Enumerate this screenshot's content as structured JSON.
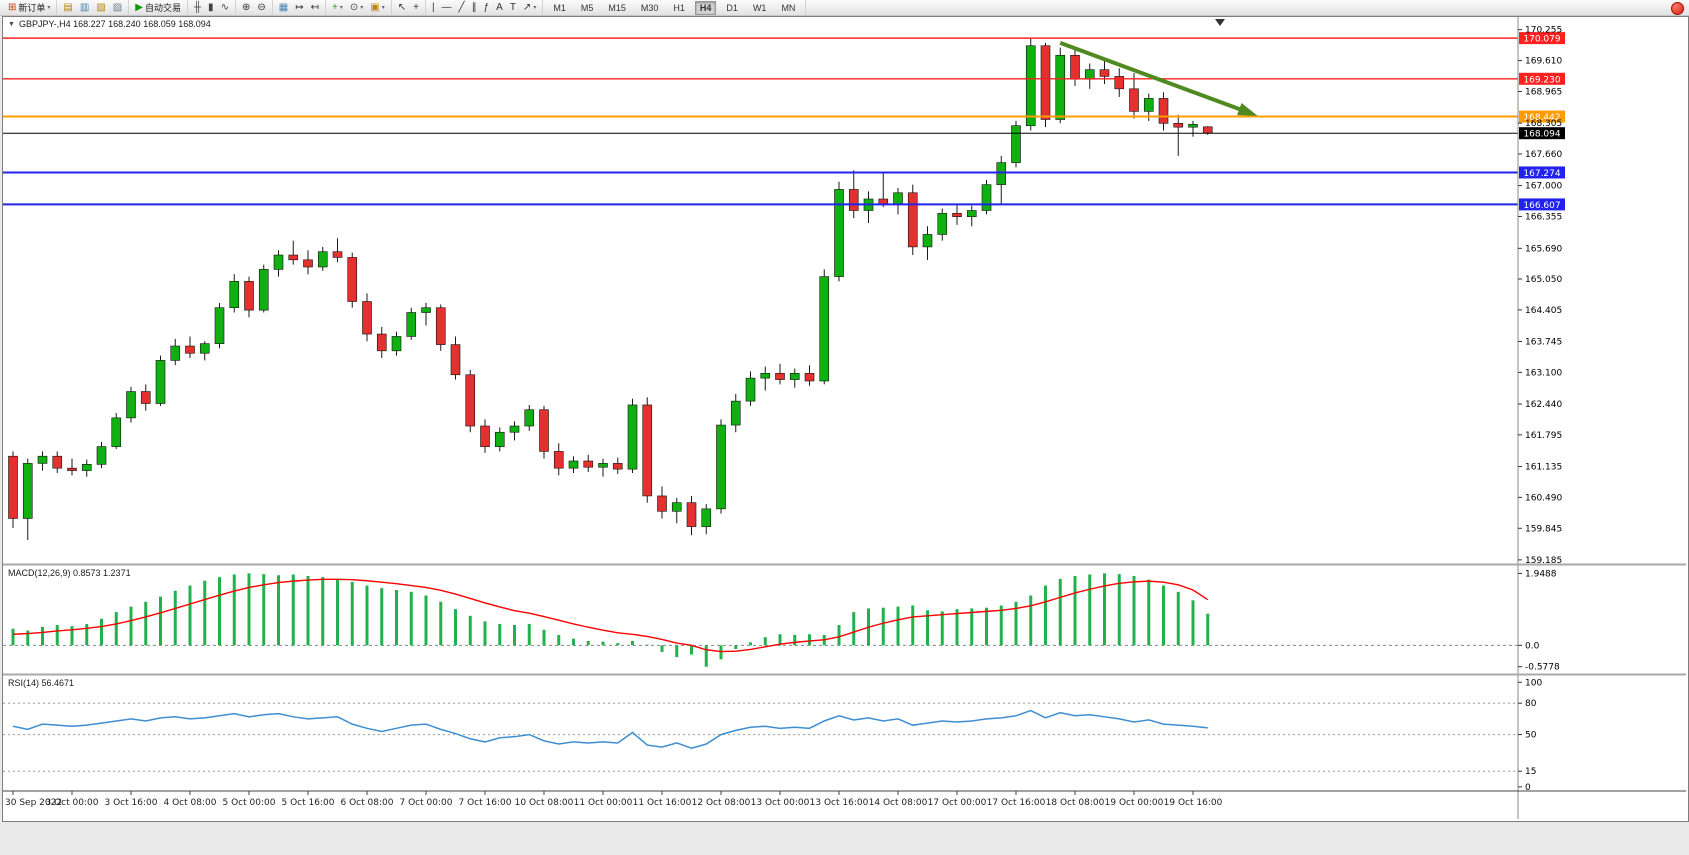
{
  "toolbar": {
    "caret_glyph": "▾",
    "groups": [
      {
        "items": [
          {
            "name": "new-order-button",
            "glyph": "⊞",
            "glyph_color": "#c43c00",
            "label": "新订单",
            "caret": true
          }
        ]
      },
      {
        "items": [
          {
            "name": "market-watch-icon",
            "glyph": "▤",
            "glyph_color": "#b8860b"
          },
          {
            "name": "data-window-icon",
            "glyph": "▥",
            "glyph_color": "#4682b4"
          },
          {
            "name": "navigator-icon",
            "glyph": "▧",
            "glyph_color": "#b8860b"
          },
          {
            "name": "terminal-icon",
            "glyph": "▨",
            "glyph_color": "#708090"
          }
        ]
      },
      {
        "items": [
          {
            "name": "auto-trading-button",
            "glyph": "▶",
            "glyph_color": "#0a9a0a",
            "label": "自动交易"
          }
        ]
      },
      {
        "items": [
          {
            "name": "bar-chart-icon",
            "glyph": "╫",
            "glyph_color": "#444"
          },
          {
            "name": "candlestick-chart-icon",
            "glyph": "▮",
            "glyph_color": "#444"
          },
          {
            "name": "line-chart-icon",
            "glyph": "∿",
            "glyph_color": "#444"
          }
        ]
      },
      {
        "items": [
          {
            "name": "zoom-in-icon",
            "glyph": "⊕",
            "glyph_color": "#333"
          },
          {
            "name": "zoom-out-icon",
            "glyph": "⊖",
            "glyph_color": "#333"
          }
        ]
      },
      {
        "items": [
          {
            "name": "tile-windows-icon",
            "glyph": "▦",
            "glyph_color": "#4682b4"
          },
          {
            "name": "auto-scroll-icon",
            "glyph": "↦",
            "glyph_color": "#333"
          },
          {
            "name": "chart-shift-icon",
            "glyph": "↤",
            "glyph_color": "#333"
          }
        ]
      },
      {
        "items": [
          {
            "name": "indicators-button",
            "glyph": "+",
            "glyph_color": "#18a018",
            "caret": true
          },
          {
            "name": "periods-button",
            "glyph": "⊙",
            "glyph_color": "#444",
            "caret": true
          },
          {
            "name": "templates-button",
            "glyph": "▣",
            "glyph_color": "#b8860b",
            "caret": true
          }
        ]
      },
      {
        "items": [
          {
            "name": "cursor-icon",
            "glyph": "↖",
            "glyph_color": "#333"
          },
          {
            "name": "crosshair-icon",
            "glyph": "+",
            "glyph_color": "#333"
          }
        ]
      },
      {
        "items": [
          {
            "name": "vertical-line-icon",
            "glyph": "|",
            "glyph_color": "#333"
          },
          {
            "name": "horizontal-line-icon",
            "glyph": "—",
            "glyph_color": "#333"
          },
          {
            "name": "trendline-icon",
            "glyph": "╱",
            "glyph_color": "#333"
          },
          {
            "name": "equidistant-channel-icon",
            "glyph": "∥",
            "glyph_color": "#333"
          },
          {
            "name": "fibonacci-icon",
            "glyph": "ƒ",
            "glyph_color": "#333"
          },
          {
            "name": "text-icon",
            "glyph": "A",
            "glyph_color": "#333"
          },
          {
            "name": "label-icon",
            "glyph": "T",
            "glyph_color": "#333"
          },
          {
            "name": "arrows-icon",
            "glyph": "↗",
            "glyph_color": "#333",
            "caret": true
          }
        ]
      }
    ],
    "timeframes": [
      "M1",
      "M5",
      "M15",
      "M30",
      "H1",
      "H4",
      "D1",
      "W1",
      "MN"
    ],
    "active_timeframe": "H4"
  },
  "chart": {
    "expander_glyph": "▼",
    "title": "GBPJPY-,H4 168.227 168.240 168.059 168.094",
    "symbol": "GBPJPY-",
    "period": "H4",
    "open": "168.227",
    "high": "168.240",
    "low": "168.059",
    "close": "168.094"
  },
  "indicators": {
    "macd": {
      "label": "MACD(12,26,9) 0.8573 1.2371",
      "axis_labels": [
        "1.9488",
        "0.0",
        "-0.5778"
      ]
    },
    "rsi": {
      "label": "RSI(14) 56.4671",
      "axis_labels": [
        "100",
        "80",
        "50",
        "15",
        "0"
      ],
      "levels": [
        80,
        50,
        15
      ]
    }
  },
  "price_axis": {
    "labels": [
      "170.255",
      "169.610",
      "168.965",
      "168.305",
      "167.660",
      "167.000",
      "166.355",
      "165.690",
      "165.050",
      "164.405",
      "163.745",
      "163.100",
      "162.440",
      "161.795",
      "161.135",
      "160.490",
      "159.845",
      "159.185"
    ]
  },
  "levels": [
    {
      "price": 170.079,
      "label": "170.079",
      "color": "#ff2020",
      "width": 1.4
    },
    {
      "price": 169.23,
      "label": "169.230",
      "color": "#ff2020",
      "width": 1.4
    },
    {
      "price": 168.442,
      "label": "168.442",
      "color": "#ff9c00",
      "width": 2
    },
    {
      "price": 167.274,
      "label": "167.274",
      "color": "#2222ee",
      "width": 2
    },
    {
      "price": 166.607,
      "label": "166.607",
      "color": "#2222ee",
      "width": 2
    }
  ],
  "bid_line": {
    "price": 168.094,
    "label": "168.094",
    "color": "#000000",
    "width": 1
  },
  "trend_arrow": {
    "from": {
      "index": 71,
      "price": 169.98
    },
    "to": {
      "index": 84,
      "price": 168.5
    },
    "color": "#4e8a1f"
  },
  "chart_data": [
    {
      "type": "candlestick",
      "name": "GBPJPY- H4",
      "ylim": [
        159.12,
        170.52
      ],
      "colors": {
        "bull": "#10b010",
        "bear": "#e53030",
        "wick": "#1a1a1a"
      },
      "label_every": 4,
      "time_labels": [
        "30 Sep 2022",
        "3 Oct 00:00",
        "3 Oct 16:00",
        "4 Oct 08:00",
        "5 Oct 00:00",
        "5 Oct 16:00",
        "6 Oct 08:00",
        "7 Oct 00:00",
        "7 Oct 16:00",
        "10 Oct 08:00",
        "11 Oct 00:00",
        "11 Oct 16:00",
        "12 Oct 08:00",
        "13 Oct 00:00",
        "13 Oct 16:00",
        "14 Oct 08:00",
        "17 Oct 00:00",
        "17 Oct 16:00",
        "18 Oct 08:00",
        "19 Oct 00:00",
        "19 Oct 16:00"
      ],
      "candles": [
        [
          161.35,
          161.45,
          159.85,
          160.05
        ],
        [
          160.05,
          161.3,
          159.6,
          161.2
        ],
        [
          161.2,
          161.45,
          161.05,
          161.35
        ],
        [
          161.35,
          161.45,
          161.0,
          161.1
        ],
        [
          161.1,
          161.3,
          160.95,
          161.05
        ],
        [
          161.05,
          161.28,
          160.92,
          161.18
        ],
        [
          161.18,
          161.65,
          161.1,
          161.55
        ],
        [
          161.55,
          162.25,
          161.5,
          162.15
        ],
        [
          162.15,
          162.8,
          162.05,
          162.7
        ],
        [
          162.7,
          162.85,
          162.3,
          162.45
        ],
        [
          162.45,
          163.45,
          162.4,
          163.35
        ],
        [
          163.35,
          163.8,
          163.25,
          163.65
        ],
        [
          163.65,
          163.85,
          163.4,
          163.5
        ],
        [
          163.5,
          163.75,
          163.35,
          163.7
        ],
        [
          163.7,
          164.55,
          163.6,
          164.45
        ],
        [
          164.45,
          165.15,
          164.35,
          165.0
        ],
        [
          165.0,
          165.1,
          164.25,
          164.4
        ],
        [
          164.4,
          165.35,
          164.35,
          165.25
        ],
        [
          165.25,
          165.65,
          165.1,
          165.55
        ],
        [
          165.55,
          165.85,
          165.35,
          165.45
        ],
        [
          165.45,
          165.65,
          165.15,
          165.3
        ],
        [
          165.3,
          165.72,
          165.22,
          165.62
        ],
        [
          165.62,
          165.9,
          165.4,
          165.5
        ],
        [
          165.5,
          165.6,
          164.45,
          164.58
        ],
        [
          164.58,
          164.75,
          163.75,
          163.9
        ],
        [
          163.9,
          164.05,
          163.4,
          163.55
        ],
        [
          163.55,
          163.95,
          163.45,
          163.85
        ],
        [
          163.85,
          164.45,
          163.78,
          164.35
        ],
        [
          164.35,
          164.55,
          164.08,
          164.45
        ],
        [
          164.45,
          164.52,
          163.55,
          163.68
        ],
        [
          163.68,
          163.85,
          162.95,
          163.05
        ],
        [
          163.05,
          163.15,
          161.85,
          161.98
        ],
        [
          161.98,
          162.12,
          161.42,
          161.55
        ],
        [
          161.55,
          161.95,
          161.45,
          161.85
        ],
        [
          161.85,
          162.08,
          161.68,
          161.98
        ],
        [
          161.98,
          162.42,
          161.88,
          162.32
        ],
        [
          162.32,
          162.4,
          161.3,
          161.45
        ],
        [
          161.45,
          161.62,
          160.95,
          161.1
        ],
        [
          161.1,
          161.35,
          161.0,
          161.25
        ],
        [
          161.25,
          161.38,
          161.02,
          161.12
        ],
        [
          161.12,
          161.3,
          160.92,
          161.2
        ],
        [
          161.2,
          161.32,
          160.98,
          161.08
        ],
        [
          161.08,
          162.55,
          161.0,
          162.42
        ],
        [
          162.42,
          162.58,
          160.38,
          160.52
        ],
        [
          160.52,
          160.72,
          160.05,
          160.2
        ],
        [
          160.2,
          160.48,
          159.95,
          160.38
        ],
        [
          160.38,
          160.52,
          159.7,
          159.88
        ],
        [
          159.88,
          160.35,
          159.72,
          160.25
        ],
        [
          160.25,
          162.12,
          160.15,
          162.0
        ],
        [
          162.0,
          162.65,
          161.85,
          162.5
        ],
        [
          162.5,
          163.12,
          162.4,
          162.98
        ],
        [
          162.98,
          163.22,
          162.72,
          163.08
        ],
        [
          163.08,
          163.28,
          162.85,
          162.95
        ],
        [
          162.95,
          163.18,
          162.78,
          163.08
        ],
        [
          163.08,
          163.25,
          162.82,
          162.92
        ],
        [
          162.92,
          165.25,
          162.85,
          165.1
        ],
        [
          165.1,
          167.08,
          165.0,
          166.92
        ],
        [
          166.92,
          167.32,
          166.32,
          166.48
        ],
        [
          166.48,
          166.88,
          166.22,
          166.72
        ],
        [
          166.72,
          167.28,
          166.55,
          166.62
        ],
        [
          166.62,
          166.95,
          166.4,
          166.85
        ],
        [
          166.85,
          167.02,
          165.55,
          165.72
        ],
        [
          165.72,
          166.15,
          165.45,
          165.98
        ],
        [
          165.98,
          166.52,
          165.85,
          166.42
        ],
        [
          166.42,
          166.62,
          166.18,
          166.35
        ],
        [
          166.35,
          166.58,
          166.15,
          166.48
        ],
        [
          166.48,
          167.12,
          166.4,
          167.02
        ],
        [
          167.02,
          167.62,
          166.62,
          167.48
        ],
        [
          167.48,
          168.35,
          167.38,
          168.25
        ],
        [
          168.25,
          170.08,
          168.15,
          169.92
        ],
        [
          169.92,
          169.98,
          168.22,
          168.38
        ],
        [
          168.38,
          169.88,
          168.3,
          169.72
        ],
        [
          169.72,
          169.85,
          169.08,
          169.22
        ],
        [
          169.22,
          169.55,
          169.02,
          169.42
        ],
        [
          169.42,
          169.62,
          169.12,
          169.28
        ],
        [
          169.28,
          169.45,
          168.85,
          169.02
        ],
        [
          169.02,
          169.35,
          168.4,
          168.55
        ],
        [
          168.55,
          168.92,
          168.35,
          168.82
        ],
        [
          168.82,
          168.95,
          168.15,
          168.3
        ],
        [
          168.3,
          168.48,
          167.62,
          168.22
        ],
        [
          168.22,
          168.35,
          168.02,
          168.28
        ],
        [
          168.227,
          168.24,
          168.059,
          168.094
        ]
      ]
    },
    {
      "type": "bar",
      "name": "MACD(12,26,9)",
      "ylim": [
        -0.75,
        2.15
      ],
      "axis_labels": [
        "1.9488",
        "0.0",
        "-0.5778"
      ],
      "last_values": [
        0.8573,
        1.2371
      ],
      "series": [
        {
          "name": "histogram",
          "color": "#22b14c",
          "values": [
            0.45,
            0.4,
            0.5,
            0.55,
            0.52,
            0.58,
            0.72,
            0.9,
            1.05,
            1.18,
            1.32,
            1.48,
            1.62,
            1.75,
            1.85,
            1.92,
            1.95,
            1.93,
            1.9,
            1.92,
            1.88,
            1.85,
            1.8,
            1.72,
            1.62,
            1.55,
            1.5,
            1.45,
            1.35,
            1.18,
            0.98,
            0.8,
            0.65,
            0.58,
            0.55,
            0.58,
            0.42,
            0.28,
            0.18,
            0.12,
            0.1,
            0.06,
            0.12,
            0.02,
            -0.18,
            -0.32,
            -0.25,
            -0.58,
            -0.38,
            -0.1,
            0.08,
            0.22,
            0.3,
            0.28,
            0.3,
            0.28,
            0.55,
            0.9,
            1.0,
            1.02,
            1.05,
            1.08,
            0.95,
            0.92,
            0.98,
            1.0,
            1.02,
            1.08,
            1.18,
            1.35,
            1.62,
            1.8,
            1.88,
            1.92,
            1.95,
            1.93,
            1.88,
            1.78,
            1.62,
            1.45,
            1.22,
            0.8573
          ]
        },
        {
          "name": "signal",
          "color": "#ff0000",
          "values": [
            0.3,
            0.32,
            0.35,
            0.39,
            0.42,
            0.46,
            0.51,
            0.58,
            0.67,
            0.77,
            0.88,
            1.0,
            1.12,
            1.24,
            1.36,
            1.47,
            1.57,
            1.64,
            1.7,
            1.74,
            1.77,
            1.79,
            1.79,
            1.78,
            1.75,
            1.71,
            1.67,
            1.62,
            1.57,
            1.49,
            1.39,
            1.27,
            1.15,
            1.04,
            0.94,
            0.87,
            0.78,
            0.68,
            0.58,
            0.49,
            0.41,
            0.34,
            0.3,
            0.24,
            0.16,
            0.06,
            0.0,
            -0.12,
            -0.17,
            -0.16,
            -0.11,
            -0.04,
            0.03,
            0.08,
            0.12,
            0.15,
            0.23,
            0.36,
            0.49,
            0.6,
            0.69,
            0.77,
            0.8,
            0.83,
            0.86,
            0.89,
            0.92,
            0.95,
            1.0,
            1.07,
            1.18,
            1.3,
            1.42,
            1.52,
            1.61,
            1.68,
            1.72,
            1.74,
            1.71,
            1.64,
            1.5,
            1.2371
          ]
        }
      ]
    },
    {
      "type": "line",
      "name": "RSI(14)",
      "ylim": [
        -2,
        106
      ],
      "color": "#3e8ed0",
      "levels": [
        80,
        50,
        15
      ],
      "last_value": 56.4671,
      "values": [
        58,
        55,
        60,
        59,
        58,
        59,
        61,
        63,
        65,
        63,
        66,
        67,
        65,
        66,
        68,
        70,
        67,
        69,
        70,
        67,
        65,
        66,
        67,
        60,
        56,
        53,
        56,
        59,
        60,
        55,
        51,
        46,
        43,
        47,
        48,
        50,
        44,
        41,
        43,
        42,
        43,
        42,
        52,
        40,
        38,
        42,
        37,
        41,
        50,
        54,
        57,
        58,
        56,
        57,
        56,
        63,
        68,
        64,
        66,
        63,
        65,
        59,
        61,
        63,
        62,
        63,
        65,
        66,
        68,
        73,
        66,
        71,
        68,
        69,
        67,
        65,
        62,
        64,
        60,
        59,
        58,
        56.4671
      ]
    }
  ]
}
